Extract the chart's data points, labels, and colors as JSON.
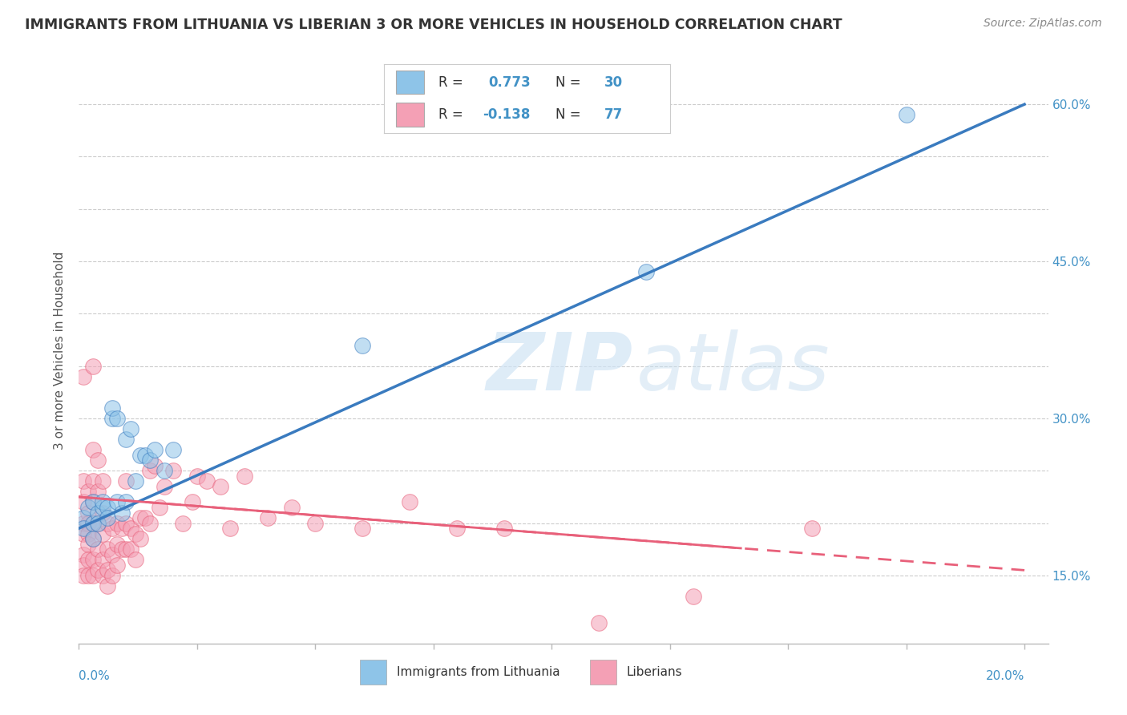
{
  "title": "IMMIGRANTS FROM LITHUANIA VS LIBERIAN 3 OR MORE VEHICLES IN HOUSEHOLD CORRELATION CHART",
  "source": "Source: ZipAtlas.com",
  "ylabel": "3 or more Vehicles in Household",
  "color_blue": "#8ec4e8",
  "color_pink": "#f4a0b5",
  "color_blue_line": "#3a7bbf",
  "color_pink_line": "#e8607a",
  "scatter_blue": [
    [
      0.001,
      0.205
    ],
    [
      0.001,
      0.195
    ],
    [
      0.002,
      0.215
    ],
    [
      0.003,
      0.2
    ],
    [
      0.003,
      0.22
    ],
    [
      0.003,
      0.185
    ],
    [
      0.004,
      0.21
    ],
    [
      0.004,
      0.2
    ],
    [
      0.005,
      0.215
    ],
    [
      0.005,
      0.22
    ],
    [
      0.006,
      0.215
    ],
    [
      0.006,
      0.205
    ],
    [
      0.007,
      0.3
    ],
    [
      0.007,
      0.31
    ],
    [
      0.008,
      0.22
    ],
    [
      0.008,
      0.3
    ],
    [
      0.009,
      0.21
    ],
    [
      0.01,
      0.22
    ],
    [
      0.01,
      0.28
    ],
    [
      0.011,
      0.29
    ],
    [
      0.012,
      0.24
    ],
    [
      0.013,
      0.265
    ],
    [
      0.014,
      0.265
    ],
    [
      0.015,
      0.26
    ],
    [
      0.016,
      0.27
    ],
    [
      0.018,
      0.25
    ],
    [
      0.02,
      0.27
    ],
    [
      0.06,
      0.37
    ],
    [
      0.12,
      0.44
    ],
    [
      0.175,
      0.59
    ]
  ],
  "scatter_pink": [
    [
      0.001,
      0.24
    ],
    [
      0.001,
      0.22
    ],
    [
      0.001,
      0.2
    ],
    [
      0.001,
      0.19
    ],
    [
      0.001,
      0.17
    ],
    [
      0.001,
      0.16
    ],
    [
      0.001,
      0.15
    ],
    [
      0.001,
      0.34
    ],
    [
      0.002,
      0.23
    ],
    [
      0.002,
      0.21
    ],
    [
      0.002,
      0.2
    ],
    [
      0.002,
      0.19
    ],
    [
      0.002,
      0.18
    ],
    [
      0.002,
      0.165
    ],
    [
      0.002,
      0.15
    ],
    [
      0.003,
      0.35
    ],
    [
      0.003,
      0.27
    ],
    [
      0.003,
      0.24
    ],
    [
      0.003,
      0.22
    ],
    [
      0.003,
      0.2
    ],
    [
      0.003,
      0.185
    ],
    [
      0.003,
      0.165
    ],
    [
      0.003,
      0.15
    ],
    [
      0.004,
      0.26
    ],
    [
      0.004,
      0.23
    ],
    [
      0.004,
      0.2
    ],
    [
      0.004,
      0.175
    ],
    [
      0.004,
      0.155
    ],
    [
      0.005,
      0.24
    ],
    [
      0.005,
      0.21
    ],
    [
      0.005,
      0.19
    ],
    [
      0.005,
      0.165
    ],
    [
      0.005,
      0.15
    ],
    [
      0.006,
      0.2
    ],
    [
      0.006,
      0.175
    ],
    [
      0.006,
      0.155
    ],
    [
      0.006,
      0.14
    ],
    [
      0.007,
      0.195
    ],
    [
      0.007,
      0.17
    ],
    [
      0.007,
      0.15
    ],
    [
      0.008,
      0.2
    ],
    [
      0.008,
      0.18
    ],
    [
      0.008,
      0.16
    ],
    [
      0.009,
      0.195
    ],
    [
      0.009,
      0.175
    ],
    [
      0.01,
      0.24
    ],
    [
      0.01,
      0.2
    ],
    [
      0.01,
      0.175
    ],
    [
      0.011,
      0.195
    ],
    [
      0.011,
      0.175
    ],
    [
      0.012,
      0.19
    ],
    [
      0.012,
      0.165
    ],
    [
      0.013,
      0.205
    ],
    [
      0.013,
      0.185
    ],
    [
      0.014,
      0.205
    ],
    [
      0.015,
      0.25
    ],
    [
      0.015,
      0.2
    ],
    [
      0.016,
      0.255
    ],
    [
      0.017,
      0.215
    ],
    [
      0.018,
      0.235
    ],
    [
      0.02,
      0.25
    ],
    [
      0.022,
      0.2
    ],
    [
      0.024,
      0.22
    ],
    [
      0.025,
      0.245
    ],
    [
      0.027,
      0.24
    ],
    [
      0.03,
      0.235
    ],
    [
      0.032,
      0.195
    ],
    [
      0.035,
      0.245
    ],
    [
      0.04,
      0.205
    ],
    [
      0.045,
      0.215
    ],
    [
      0.05,
      0.2
    ],
    [
      0.06,
      0.195
    ],
    [
      0.07,
      0.22
    ],
    [
      0.08,
      0.195
    ],
    [
      0.09,
      0.195
    ],
    [
      0.11,
      0.105
    ],
    [
      0.13,
      0.13
    ],
    [
      0.155,
      0.195
    ]
  ],
  "blue_line": [
    [
      0.0,
      0.195
    ],
    [
      0.2,
      0.6
    ]
  ],
  "pink_line": [
    [
      0.0,
      0.225
    ],
    [
      0.2,
      0.155
    ]
  ],
  "xlim": [
    0.0,
    0.205
  ],
  "ylim": [
    0.085,
    0.645
  ],
  "ytick_positions": [
    0.15,
    0.2,
    0.25,
    0.3,
    0.35,
    0.4,
    0.45,
    0.5,
    0.55,
    0.6
  ],
  "right_ytick_labels": [
    "15.0%",
    "",
    "",
    "30.0%",
    "",
    "",
    "45.0%",
    "",
    "",
    "60.0%"
  ],
  "watermark_zip": "ZIP",
  "watermark_atlas": "atlas",
  "background_color": "#ffffff",
  "grid_color": "#cccccc",
  "title_color": "#333333",
  "source_color": "#888888",
  "axis_label_color": "#555555",
  "tick_color": "#4292c6"
}
